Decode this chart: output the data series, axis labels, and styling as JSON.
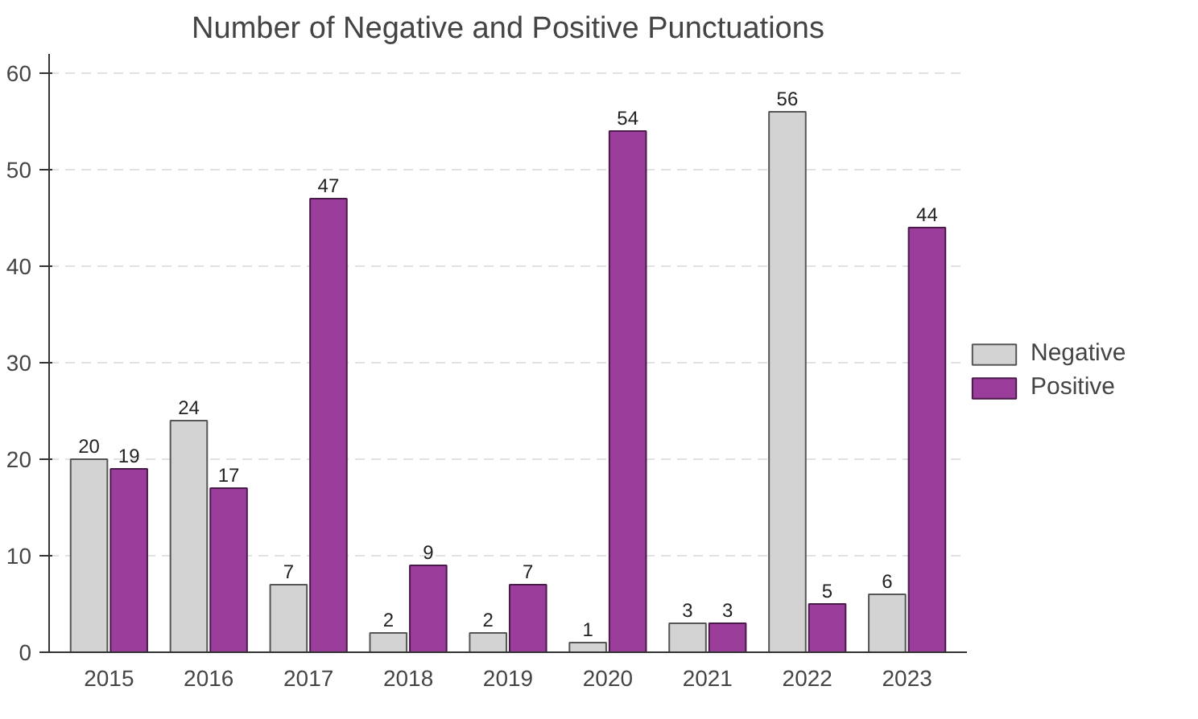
{
  "chart_data": {
    "type": "bar",
    "title": "Number of Negative and Positive Punctuations",
    "categories": [
      "2015",
      "2016",
      "2017",
      "2018",
      "2019",
      "2020",
      "2021",
      "2022",
      "2023"
    ],
    "series": [
      {
        "name": "Negative",
        "color": "#d3d3d3",
        "values": [
          20,
          24,
          7,
          2,
          2,
          1,
          3,
          56,
          6
        ]
      },
      {
        "name": "Positive",
        "color": "#9b3d9b",
        "values": [
          19,
          17,
          47,
          9,
          7,
          54,
          3,
          5,
          44
        ]
      }
    ],
    "ylim": [
      0,
      62
    ],
    "yticks": [
      0,
      10,
      20,
      30,
      40,
      50,
      60
    ],
    "grid": "y",
    "legend": "right",
    "data_labels": true
  }
}
